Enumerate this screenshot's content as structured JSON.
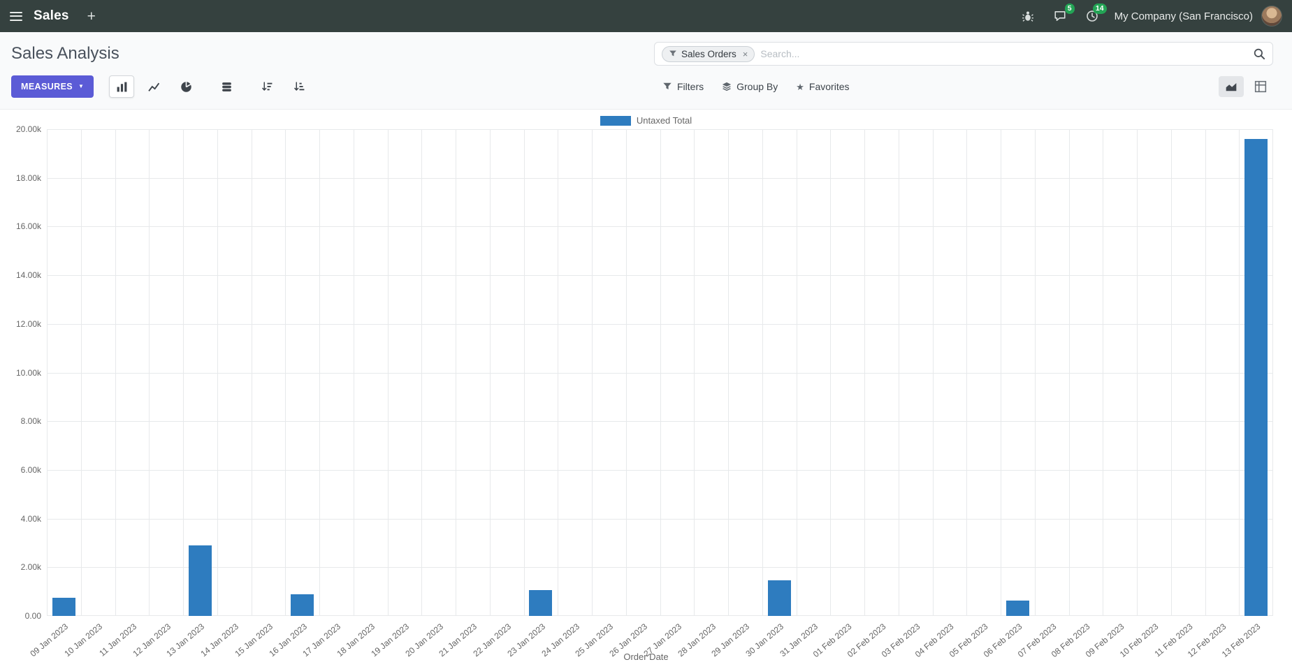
{
  "colors": {
    "navbar_bg": "#35413f",
    "primary_button": "#5b5bd6",
    "bar": "#2e7cbf",
    "badge": "#23a455"
  },
  "icons": {
    "plus": "+",
    "caret_down": "▼",
    "star": "★",
    "close": "×"
  },
  "navbar": {
    "app_name": "Sales",
    "message_badge": "5",
    "activity_badge": "14",
    "company": "My Company (San Francisco)"
  },
  "control_panel": {
    "title": "Sales Analysis",
    "measures_label": "MEASURES",
    "search": {
      "facet_label": "Sales Orders",
      "placeholder": "Search...",
      "remove": "×"
    },
    "filters_label": "Filters",
    "group_by_label": "Group By",
    "favorites_label": "Favorites"
  },
  "chart_data": {
    "type": "bar",
    "title": "",
    "legend": "Untaxed Total",
    "legend_position": "top",
    "grid": true,
    "xlabel": "Order Date",
    "ylabel": "",
    "ylim": [
      0,
      20000
    ],
    "y_ticks": [
      "20.00k",
      "18.00k",
      "16.00k",
      "14.00k",
      "12.00k",
      "10.00k",
      "8.00k",
      "6.00k",
      "4.00k",
      "2.00k",
      "0.00"
    ],
    "categories": [
      "09 Jan 2023",
      "10 Jan 2023",
      "11 Jan 2023",
      "12 Jan 2023",
      "13 Jan 2023",
      "14 Jan 2023",
      "15 Jan 2023",
      "16 Jan 2023",
      "17 Jan 2023",
      "18 Jan 2023",
      "19 Jan 2023",
      "20 Jan 2023",
      "21 Jan 2023",
      "22 Jan 2023",
      "23 Jan 2023",
      "24 Jan 2023",
      "25 Jan 2023",
      "26 Jan 2023",
      "27 Jan 2023",
      "28 Jan 2023",
      "29 Jan 2023",
      "30 Jan 2023",
      "31 Jan 2023",
      "01 Feb 2023",
      "02 Feb 2023",
      "03 Feb 2023",
      "04 Feb 2023",
      "05 Feb 2023",
      "06 Feb 2023",
      "07 Feb 2023",
      "08 Feb 2023",
      "09 Feb 2023",
      "10 Feb 2023",
      "11 Feb 2023",
      "12 Feb 2023",
      "13 Feb 2023"
    ],
    "series": [
      {
        "name": "Untaxed Total",
        "color": "#2e7cbf",
        "values": [
          750,
          0,
          0,
          0,
          2900,
          0,
          0,
          900,
          0,
          0,
          0,
          0,
          0,
          0,
          1050,
          0,
          0,
          0,
          0,
          0,
          0,
          1450,
          0,
          0,
          0,
          0,
          0,
          0,
          620,
          0,
          0,
          0,
          0,
          0,
          0,
          19600
        ]
      }
    ]
  }
}
